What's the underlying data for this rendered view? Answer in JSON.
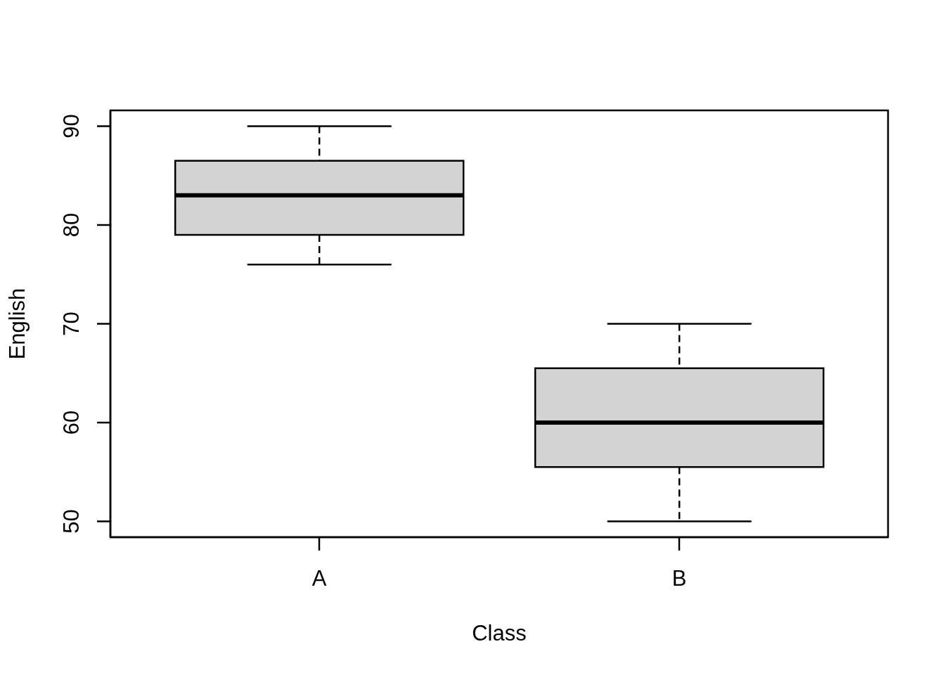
{
  "chart_data": {
    "type": "box",
    "xlabel": "Class",
    "ylabel": "English",
    "categories": [
      "A",
      "B"
    ],
    "boxes": [
      {
        "low": 76,
        "q1": 79,
        "median": 83,
        "q3": 86.5,
        "high": 90
      },
      {
        "low": 50,
        "q1": 55.5,
        "median": 60,
        "q3": 65.5,
        "high": 70
      }
    ],
    "color": "#d3d3d3",
    "ylim": [
      48.4,
      91.6
    ],
    "yticks": [
      50,
      60,
      70,
      80,
      90
    ]
  }
}
